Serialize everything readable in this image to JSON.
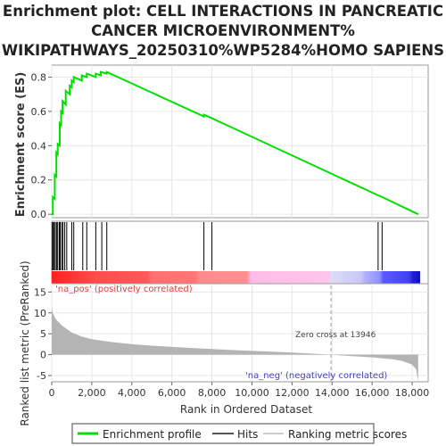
{
  "title_lines": [
    "Enrichment plot: CELL INTERACTIONS IN PANCREATIC",
    "CANCER MICROENVIRONMENT%",
    "WIKIPATHWAYS_20250310%WP5284%HOMO SAPIENS"
  ],
  "legend": {
    "enrichment_label": "Enrichment profile",
    "hits_label": "Hits",
    "ranking_label": "Ranking metric scores"
  },
  "colors": {
    "enrichment_line": "#00e000",
    "hits": "#000000",
    "ranking_fill": "#b4b4b4",
    "pos_label": "#e04040",
    "neg_label": "#4040c0",
    "zero_line": "#a0a0a0"
  },
  "chart_data": [
    {
      "type": "line",
      "name": "enrichment_profile",
      "ylabel": "Enrichment score (ES)",
      "xlim": [
        0,
        18800
      ],
      "ylim": [
        -0.02,
        0.87
      ],
      "yticks": [
        0.0,
        0.2,
        0.4,
        0.6,
        0.8
      ],
      "ytick_labels": [
        "0.0",
        "0.2",
        "0.4",
        "0.6",
        "0.8"
      ],
      "x": [
        0,
        60,
        60,
        150,
        150,
        230,
        230,
        300,
        300,
        400,
        400,
        470,
        470,
        540,
        540,
        700,
        700,
        900,
        900,
        1000,
        1000,
        1100,
        1100,
        1500,
        1500,
        1750,
        1750,
        2200,
        2200,
        2450,
        2450,
        2750,
        2750,
        7600,
        7600,
        8000,
        8000,
        16300,
        16300,
        16500,
        16500,
        18300
      ],
      "y": [
        0.0,
        0.0,
        0.1,
        0.09,
        0.23,
        0.22,
        0.36,
        0.35,
        0.41,
        0.4,
        0.53,
        0.52,
        0.6,
        0.59,
        0.66,
        0.64,
        0.72,
        0.7,
        0.75,
        0.74,
        0.78,
        0.77,
        0.8,
        0.78,
        0.81,
        0.8,
        0.82,
        0.8,
        0.82,
        0.81,
        0.83,
        0.82,
        0.83,
        0.57,
        0.58,
        0.56,
        0.56,
        0.11,
        0.11,
        0.1,
        0.1,
        0.0
      ],
      "grid": true
    },
    {
      "type": "scatter",
      "name": "hits",
      "hit_positions": [
        30,
        80,
        120,
        180,
        250,
        300,
        380,
        420,
        500,
        560,
        650,
        750,
        1000,
        1100,
        1550,
        1750,
        2200,
        2500,
        2750,
        7600,
        8000,
        16300,
        16500
      ]
    },
    {
      "type": "area",
      "name": "ranking_metric",
      "xlabel": "Rank in Ordered Dataset",
      "ylabel": "Ranked list metric (PreRanked)",
      "xlim": [
        0,
        18800
      ],
      "ylim": [
        -6.5,
        17
      ],
      "xticks": [
        0,
        2000,
        4000,
        6000,
        8000,
        10000,
        12000,
        14000,
        16000,
        18000
      ],
      "xtick_labels": [
        "0",
        "2,000",
        "4,000",
        "6,000",
        "8,000",
        "10,000",
        "12,000",
        "14,000",
        "16,000",
        "18,000"
      ],
      "yticks": [
        -5,
        0,
        5,
        10,
        15
      ],
      "ytick_labels": [
        "-5",
        "0",
        "5",
        "10",
        "15"
      ],
      "x": [
        0,
        50,
        200,
        500,
        1000,
        1500,
        2000,
        3000,
        4000,
        5000,
        6000,
        7000,
        8000,
        9000,
        10000,
        11000,
        12000,
        13000,
        13946,
        14500,
        15000,
        16000,
        17000,
        17500,
        18000,
        18200,
        18300
      ],
      "values": [
        11.5,
        10.0,
        8.5,
        7.0,
        5.3,
        4.3,
        3.7,
        3.0,
        2.5,
        2.15,
        1.85,
        1.6,
        1.35,
        1.1,
        0.9,
        0.7,
        0.5,
        0.25,
        0.0,
        -0.2,
        -0.35,
        -0.65,
        -1.1,
        -1.5,
        -2.4,
        -3.5,
        -6.3
      ],
      "pos_label": "'na_pos' (positively correlated)",
      "neg_label": "'na_neg' (negatively correlated)",
      "zero_cross_label": "Zero cross at 13946",
      "zero_cross": 13946,
      "grid": true
    }
  ]
}
